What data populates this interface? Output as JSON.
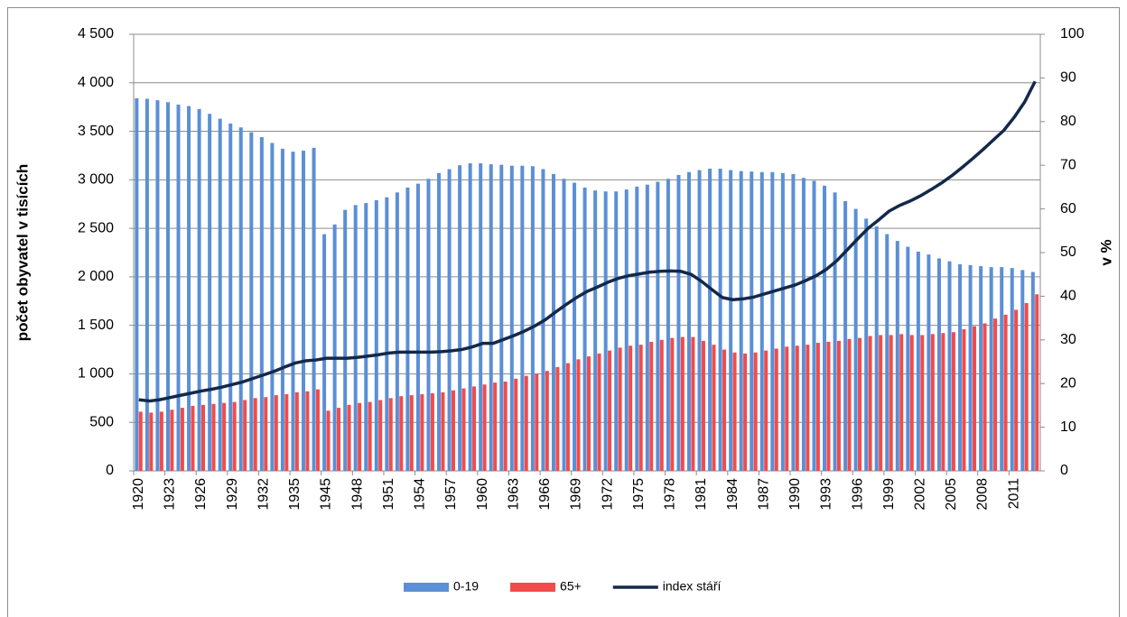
{
  "chart_data": {
    "type": "bar",
    "y_label": "počet obyvatel v tisících",
    "y2_label": "v %",
    "legend": "bottom",
    "grid": true,
    "categories": [
      "1920",
      null,
      null,
      "1923",
      null,
      null,
      "1926",
      null,
      null,
      "1929",
      null,
      null,
      "1932",
      null,
      null,
      "1935",
      null,
      null,
      "1945",
      null,
      null,
      "1948",
      null,
      null,
      "1951",
      null,
      null,
      "1954",
      null,
      null,
      "1957",
      null,
      null,
      "1960",
      null,
      null,
      "1963",
      null,
      null,
      "1966",
      null,
      null,
      "1969",
      null,
      null,
      "1972",
      null,
      null,
      "1975",
      null,
      null,
      "1978",
      null,
      null,
      "1981",
      null,
      null,
      "1984",
      null,
      null,
      "1987",
      null,
      null,
      "1990",
      null,
      null,
      "1993",
      null,
      null,
      "1996",
      null,
      null,
      "1999",
      null,
      null,
      "2002",
      null,
      null,
      "2005",
      null,
      null,
      "2008",
      null,
      null,
      "2011",
      null,
      null
    ],
    "ylim": [
      0,
      4500
    ],
    "yticks": [
      0,
      500,
      {
        "value": 1000,
        "label": "1 000"
      },
      {
        "value": 1500,
        "label": "1 500"
      },
      {
        "value": 2000,
        "label": "2 000"
      },
      {
        "value": 2500,
        "label": "2 500"
      },
      {
        "value": 3000,
        "label": "3 000"
      },
      {
        "value": 3500,
        "label": "3 500"
      },
      {
        "value": 4000,
        "label": "4 000"
      },
      {
        "value": 4500,
        "label": "4 500"
      }
    ],
    "y2lim": [
      0,
      100
    ],
    "y2ticks": [
      0,
      10,
      20,
      30,
      40,
      50,
      60,
      70,
      80,
      90,
      100
    ],
    "series": [
      {
        "name": "0-19",
        "color": "#5b8fd6",
        "values": [
          3840,
          3835,
          3820,
          3800,
          3775,
          3760,
          3730,
          3680,
          3630,
          3580,
          3540,
          3490,
          3440,
          3380,
          3320,
          3290,
          3300,
          3330,
          2440,
          2540,
          2690,
          2740,
          2760,
          2790,
          2820,
          2870,
          2920,
          2960,
          3010,
          3070,
          3110,
          3150,
          3170,
          3170,
          3160,
          3155,
          3145,
          3145,
          3140,
          3110,
          3060,
          3010,
          2970,
          2920,
          2890,
          2880,
          2880,
          2900,
          2930,
          2950,
          2980,
          3010,
          3050,
          3080,
          3100,
          3115,
          3115,
          3100,
          3090,
          3085,
          3080,
          3080,
          3070,
          3060,
          3020,
          2990,
          2940,
          2870,
          2780,
          2700,
          2600,
          2520,
          2440,
          2370,
          2310,
          2260,
          2230,
          2190,
          2160,
          2130,
          2120,
          2110,
          2100,
          2100,
          2090,
          2070,
          2050
        ]
      },
      {
        "name": "65+",
        "color": "#f24b4b",
        "values": [
          610,
          600,
          610,
          630,
          650,
          670,
          680,
          690,
          700,
          710,
          730,
          750,
          760,
          780,
          790,
          810,
          820,
          840,
          620,
          650,
          680,
          700,
          710,
          730,
          750,
          770,
          780,
          790,
          800,
          810,
          830,
          850,
          870,
          890,
          910,
          920,
          950,
          980,
          1000,
          1030,
          1070,
          1110,
          1150,
          1180,
          1210,
          1240,
          1270,
          1290,
          1300,
          1330,
          1350,
          1370,
          1380,
          1380,
          1340,
          1300,
          1250,
          1220,
          1210,
          1220,
          1240,
          1260,
          1280,
          1290,
          1300,
          1320,
          1330,
          1340,
          1360,
          1370,
          1390,
          1400,
          1400,
          1410,
          1400,
          1400,
          1410,
          1420,
          1430,
          1460,
          1490,
          1520,
          1570,
          1610,
          1660,
          1730,
          1820
        ]
      },
      {
        "name": "index stáří",
        "color": "#13294b",
        "type": "line",
        "axis": "y2",
        "values": [
          16.3,
          16.0,
          16.3,
          16.8,
          17.3,
          17.8,
          18.3,
          18.7,
          19.2,
          19.8,
          20.4,
          21.2,
          22.0,
          22.8,
          23.8,
          24.7,
          25.2,
          25.4,
          25.8,
          25.8,
          25.8,
          26.0,
          26.3,
          26.6,
          27.0,
          27.2,
          27.2,
          27.2,
          27.2,
          27.3,
          27.5,
          27.8,
          28.4,
          29.2,
          29.2,
          30.1,
          31.0,
          32.0,
          33.2,
          34.6,
          36.4,
          38.1,
          39.7,
          41.1,
          42.1,
          43.2,
          44.1,
          44.7,
          45.1,
          45.5,
          45.7,
          45.8,
          45.7,
          45.0,
          43.4,
          41.5,
          39.7,
          39.2,
          39.4,
          39.8,
          40.5,
          41.2,
          41.9,
          42.6,
          43.6,
          44.7,
          46.2,
          48.2,
          50.7,
          53.2,
          55.6,
          57.5,
          59.5,
          60.8,
          61.8,
          63.0,
          64.4,
          65.9,
          67.6,
          69.5,
          71.5,
          73.6,
          75.8,
          78.0,
          81.0,
          84.5,
          89.2
        ]
      }
    ]
  }
}
